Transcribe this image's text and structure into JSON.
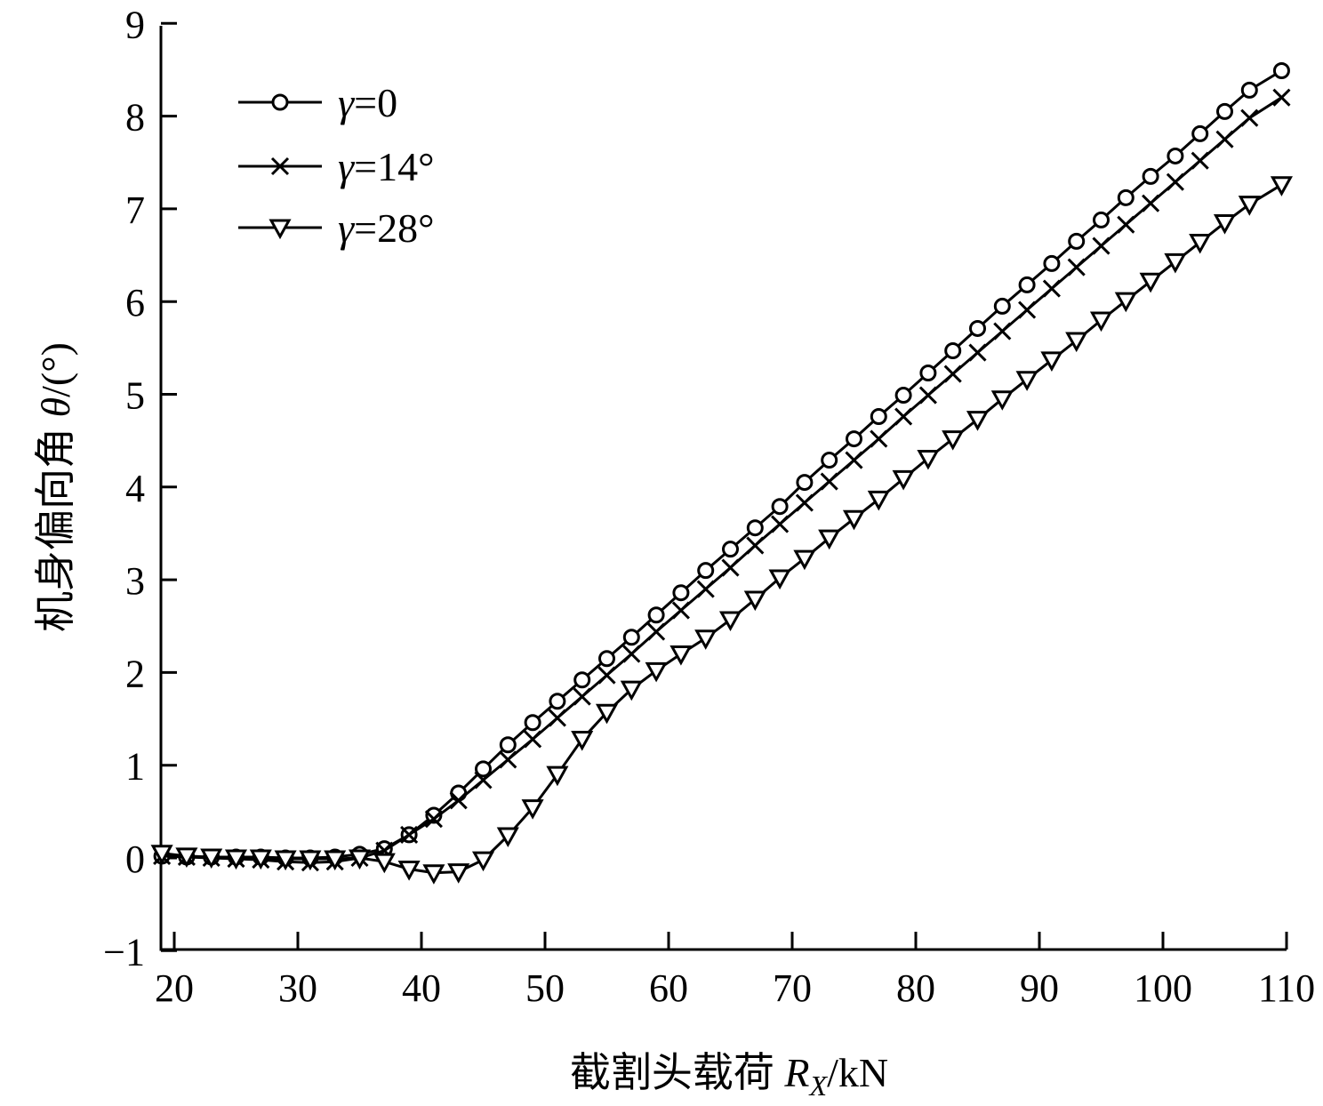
{
  "chart_data": {
    "type": "line",
    "title": "",
    "xlabel": "截割头载荷 R_X/kN",
    "xlabel_parts": {
      "prefix": "截割头载荷 ",
      "var": "R",
      "sub": "X",
      "unit": "/kN"
    },
    "ylabel": "机身偏向角 θ/(°)",
    "ylabel_parts": {
      "prefix": "机身偏向角 ",
      "var": "θ",
      "unit": "/(°)"
    },
    "xlim": [
      19,
      110
    ],
    "ylim": [
      -1,
      9
    ],
    "xticks": [
      20,
      30,
      40,
      50,
      60,
      70,
      80,
      90,
      100,
      110
    ],
    "yticks": [
      -1,
      0,
      1,
      2,
      3,
      4,
      5,
      6,
      7,
      8,
      9
    ],
    "ytick_labels": [
      "−1",
      "0",
      "1",
      "2",
      "3",
      "4",
      "5",
      "6",
      "7",
      "8",
      "9"
    ],
    "grid": false,
    "legend_position": "upper-left",
    "x": [
      19,
      21,
      23,
      25,
      27,
      29,
      31,
      33,
      35,
      37,
      39,
      41,
      43,
      45,
      47,
      49,
      51,
      53,
      55,
      57,
      59,
      61,
      63,
      65,
      67,
      69,
      71,
      73,
      75,
      77,
      79,
      81,
      83,
      85,
      87,
      89,
      91,
      93,
      95,
      97,
      99,
      101,
      103,
      105,
      107,
      109.6
    ],
    "series": [
      {
        "name": "γ=0",
        "marker": "circle",
        "values": [
          0.02,
          0.01,
          0.01,
          0.01,
          0.01,
          0.0,
          0.0,
          0.01,
          0.04,
          0.1,
          0.25,
          0.46,
          0.7,
          0.96,
          1.22,
          1.46,
          1.69,
          1.92,
          2.15,
          2.38,
          2.62,
          2.86,
          3.1,
          3.33,
          3.56,
          3.79,
          4.05,
          4.29,
          4.52,
          4.76,
          4.99,
          5.23,
          5.47,
          5.71,
          5.95,
          6.18,
          6.41,
          6.65,
          6.88,
          7.12,
          7.35,
          7.57,
          7.81,
          8.05,
          8.28,
          8.49
        ]
      },
      {
        "name": "γ=14°",
        "marker": "x",
        "values": [
          0.02,
          0.01,
          0.0,
          -0.01,
          -0.02,
          -0.04,
          -0.05,
          -0.04,
          0.0,
          0.08,
          0.25,
          0.42,
          0.62,
          0.84,
          1.06,
          1.28,
          1.51,
          1.74,
          1.97,
          2.2,
          2.44,
          2.67,
          2.9,
          3.13,
          3.37,
          3.6,
          3.83,
          4.06,
          4.29,
          4.52,
          4.76,
          4.99,
          5.22,
          5.45,
          5.68,
          5.91,
          6.14,
          6.37,
          6.6,
          6.83,
          7.06,
          7.29,
          7.52,
          7.75,
          7.98,
          8.2
        ]
      },
      {
        "name": "γ=28°",
        "marker": "triangle-down",
        "values": [
          0.05,
          0.02,
          0.01,
          0.0,
          0.0,
          -0.01,
          -0.01,
          -0.01,
          0.0,
          -0.04,
          -0.12,
          -0.16,
          -0.15,
          -0.02,
          0.24,
          0.54,
          0.9,
          1.28,
          1.57,
          1.82,
          2.02,
          2.2,
          2.37,
          2.57,
          2.79,
          3.02,
          3.23,
          3.45,
          3.66,
          3.87,
          4.09,
          4.31,
          4.52,
          4.73,
          4.95,
          5.16,
          5.37,
          5.58,
          5.8,
          6.01,
          6.22,
          6.43,
          6.64,
          6.85,
          7.05,
          7.26
        ]
      }
    ]
  },
  "legend": {
    "items": [
      {
        "label_var": "γ",
        "label_rest": "=0"
      },
      {
        "label_var": "γ",
        "label_rest": "=14°"
      },
      {
        "label_var": "γ",
        "label_rest": "=28°"
      }
    ]
  },
  "colors": {
    "line": "#000000",
    "background": "#ffffff"
  }
}
